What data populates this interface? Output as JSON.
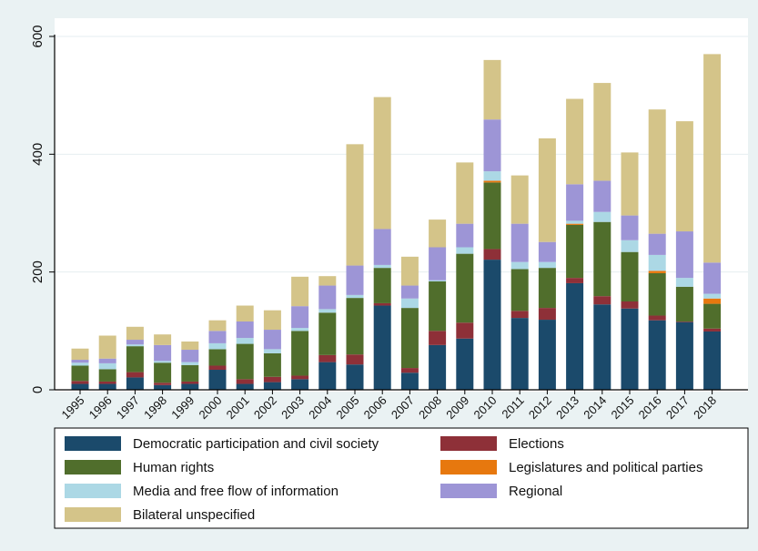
{
  "chart_data": {
    "type": "bar",
    "stacked": true,
    "title": "",
    "xlabel": "",
    "ylabel": "",
    "ylim": [
      0,
      600
    ],
    "yticks": [
      0,
      200,
      400,
      600
    ],
    "grid": true,
    "legend_position": "bottom",
    "categories": [
      "1995",
      "1996",
      "1997",
      "1998",
      "1999",
      "2000",
      "2001",
      "2002",
      "2003",
      "2004",
      "2005",
      "2006",
      "2007",
      "2008",
      "2009",
      "2010",
      "2011",
      "2012",
      "2013",
      "2014",
      "2015",
      "2016",
      "2017",
      "2018"
    ],
    "series": [
      {
        "name": "Democratic participation and civil society",
        "color": "#1b4a6b",
        "values": [
          10,
          10,
          21,
          8,
          10,
          34,
          10,
          13,
          18,
          47,
          43,
          143,
          29,
          76,
          87,
          221,
          122,
          119,
          181,
          145,
          138,
          118,
          115,
          99
        ]
      },
      {
        "name": "Elections",
        "color": "#8e3038",
        "values": [
          5,
          4,
          9,
          4,
          4,
          7,
          8,
          9,
          6,
          12,
          17,
          4,
          8,
          24,
          27,
          18,
          12,
          20,
          9,
          14,
          12,
          8,
          1,
          5
        ]
      },
      {
        "name": "Human rights",
        "color": "#506e2c",
        "values": [
          26,
          21,
          44,
          34,
          28,
          28,
          60,
          40,
          76,
          72,
          96,
          60,
          102,
          84,
          117,
          113,
          71,
          68,
          90,
          126,
          84,
          72,
          59,
          42
        ]
      },
      {
        "name": "Legislatures and political parties",
        "color": "#e7780e",
        "values": [
          0,
          0,
          0,
          0,
          0,
          0,
          0,
          0,
          0,
          0,
          0,
          0,
          0,
          0,
          0,
          3,
          0,
          0,
          2,
          0,
          0,
          4,
          0,
          9
        ]
      },
      {
        "name": "Media and free flow of information",
        "color": "#acd8e5",
        "values": [
          5,
          10,
          3,
          3,
          5,
          10,
          10,
          7,
          5,
          6,
          5,
          5,
          16,
          2,
          11,
          16,
          12,
          10,
          5,
          17,
          20,
          27,
          15,
          8
        ]
      },
      {
        "name": "Regional",
        "color": "#9d95d6",
        "values": [
          5,
          8,
          8,
          27,
          21,
          21,
          28,
          33,
          37,
          40,
          50,
          61,
          22,
          56,
          40,
          88,
          65,
          34,
          62,
          53,
          42,
          36,
          79,
          53
        ]
      },
      {
        "name": "Bilateral unspecified",
        "color": "#d4c489",
        "values": [
          19,
          39,
          22,
          18,
          14,
          18,
          27,
          33,
          50,
          16,
          206,
          224,
          49,
          47,
          104,
          101,
          82,
          176,
          145,
          166,
          107,
          211,
          187,
          354
        ]
      }
    ]
  }
}
